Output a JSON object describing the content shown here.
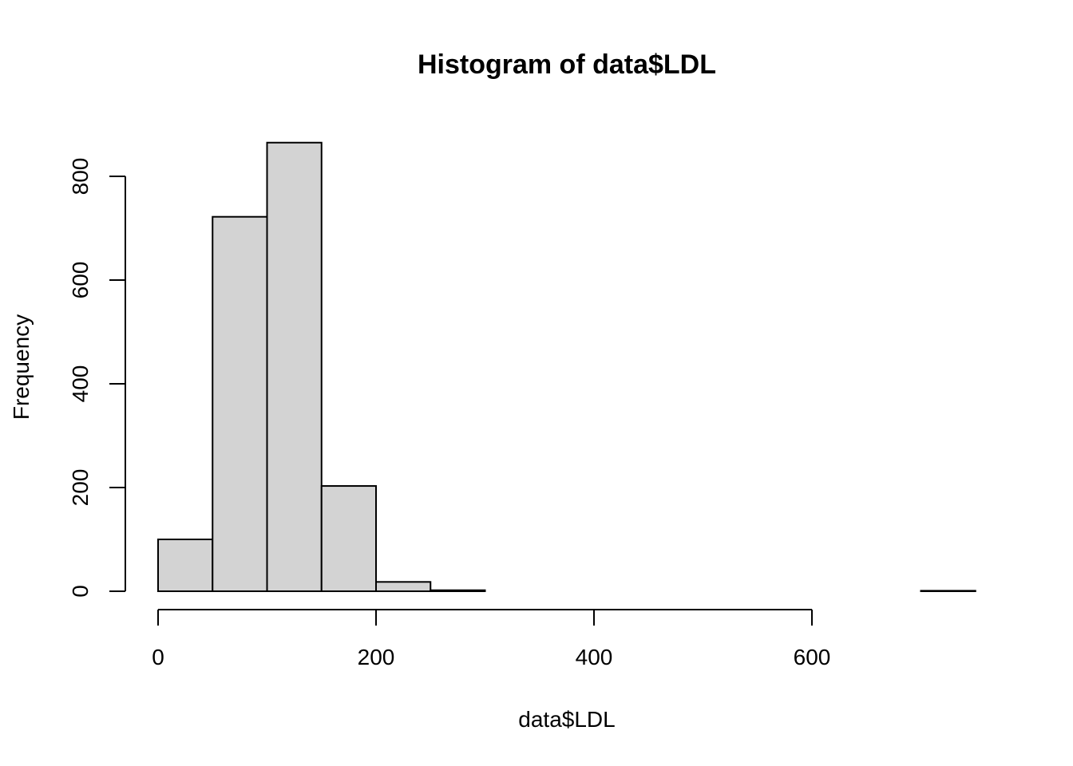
{
  "chart_data": {
    "type": "bar",
    "title": "Histogram of data$LDL",
    "xlabel": "data$LDL",
    "ylabel": "Frequency",
    "bins": [
      {
        "start": 0,
        "end": 50,
        "count": 100
      },
      {
        "start": 50,
        "end": 100,
        "count": 722
      },
      {
        "start": 100,
        "end": 150,
        "count": 865
      },
      {
        "start": 150,
        "end": 200,
        "count": 203
      },
      {
        "start": 200,
        "end": 250,
        "count": 18
      },
      {
        "start": 250,
        "end": 300,
        "count": 2
      },
      {
        "start": 300,
        "end": 350,
        "count": 0
      },
      {
        "start": 350,
        "end": 400,
        "count": 0
      },
      {
        "start": 400,
        "end": 450,
        "count": 0
      },
      {
        "start": 450,
        "end": 500,
        "count": 0
      },
      {
        "start": 500,
        "end": 550,
        "count": 0
      },
      {
        "start": 550,
        "end": 600,
        "count": 0
      },
      {
        "start": 600,
        "end": 650,
        "count": 0
      },
      {
        "start": 650,
        "end": 700,
        "count": 0
      },
      {
        "start": 700,
        "end": 750,
        "count": 1
      }
    ],
    "xlim": [
      0,
      750
    ],
    "ylim": [
      0,
      865
    ],
    "xticks": [
      0,
      200,
      400,
      600
    ],
    "yticks": [
      0,
      200,
      400,
      600,
      800
    ],
    "grid": false,
    "colors": {
      "bar_fill": "#d3d3d3",
      "bar_stroke": "#000000"
    }
  }
}
